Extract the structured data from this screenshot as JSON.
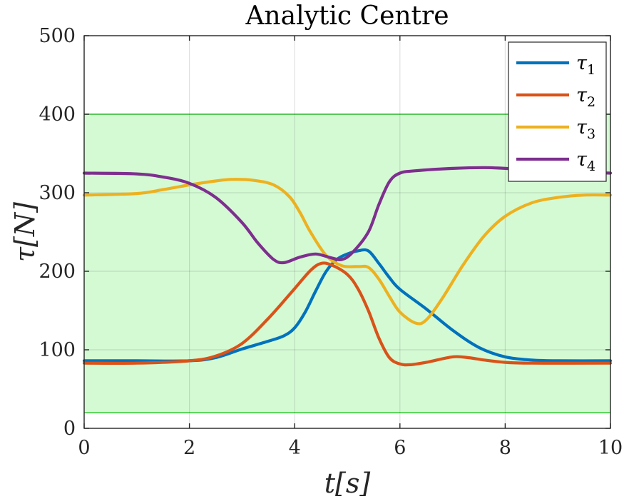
{
  "chart_data": {
    "type": "line",
    "title": "Analytic Centre",
    "xlabel": "t[s]",
    "ylabel": "τ[N]",
    "xlim": [
      0,
      10
    ],
    "ylim": [
      0,
      500
    ],
    "xticks": [
      "0",
      "2",
      "4",
      "6",
      "8",
      "10"
    ],
    "yticks": [
      "0",
      "100",
      "200",
      "300",
      "400",
      "500"
    ],
    "grid": true,
    "legend_position": "top-right",
    "feasible_band": {
      "lower": 20,
      "upper": 400,
      "fill": "#d4fad4",
      "edge": "#33cc33"
    },
    "series": [
      {
        "name": "τ1",
        "label_base": "τ",
        "label_sub": "1",
        "color": "#0072BD",
        "points": [
          [
            0,
            86
          ],
          [
            1,
            86
          ],
          [
            2,
            86
          ],
          [
            2.5,
            90
          ],
          [
            3,
            101
          ],
          [
            3.5,
            111
          ],
          [
            3.8,
            118
          ],
          [
            4,
            128
          ],
          [
            4.2,
            148
          ],
          [
            4.4,
            175
          ],
          [
            4.6,
            200
          ],
          [
            4.8,
            215
          ],
          [
            5,
            222
          ],
          [
            5.2,
            226
          ],
          [
            5.4,
            226
          ],
          [
            5.6,
            210
          ],
          [
            5.8,
            192
          ],
          [
            6,
            177
          ],
          [
            6.5,
            152
          ],
          [
            7,
            125
          ],
          [
            7.5,
            103
          ],
          [
            8,
            91
          ],
          [
            8.5,
            87
          ],
          [
            9,
            86
          ],
          [
            10,
            86
          ]
        ]
      },
      {
        "name": "τ2",
        "label_base": "τ",
        "label_sub": "2",
        "color": "#D95319",
        "points": [
          [
            0,
            83
          ],
          [
            1,
            83
          ],
          [
            2,
            86
          ],
          [
            2.5,
            92
          ],
          [
            3,
            108
          ],
          [
            3.5,
            140
          ],
          [
            4,
            178
          ],
          [
            4.3,
            201
          ],
          [
            4.5,
            210
          ],
          [
            4.7,
            208
          ],
          [
            5,
            196
          ],
          [
            5.2,
            178
          ],
          [
            5.4,
            150
          ],
          [
            5.6,
            115
          ],
          [
            5.8,
            90
          ],
          [
            6,
            82
          ],
          [
            6.2,
            81
          ],
          [
            6.5,
            84
          ],
          [
            7,
            91
          ],
          [
            7.3,
            90
          ],
          [
            7.6,
            87
          ],
          [
            8,
            84
          ],
          [
            8.5,
            83
          ],
          [
            10,
            83
          ]
        ]
      },
      {
        "name": "τ3",
        "label_base": "τ",
        "label_sub": "3",
        "color": "#EDB120",
        "points": [
          [
            0,
            297
          ],
          [
            1,
            299
          ],
          [
            1.5,
            304
          ],
          [
            2,
            310
          ],
          [
            2.5,
            315
          ],
          [
            2.8,
            317
          ],
          [
            3.2,
            316
          ],
          [
            3.6,
            310
          ],
          [
            3.9,
            295
          ],
          [
            4.1,
            275
          ],
          [
            4.3,
            250
          ],
          [
            4.6,
            220
          ],
          [
            4.9,
            207
          ],
          [
            5.2,
            206
          ],
          [
            5.4,
            205
          ],
          [
            5.6,
            190
          ],
          [
            5.8,
            168
          ],
          [
            6,
            148
          ],
          [
            6.3,
            134
          ],
          [
            6.5,
            138
          ],
          [
            6.8,
            165
          ],
          [
            7.2,
            208
          ],
          [
            7.6,
            245
          ],
          [
            8,
            270
          ],
          [
            8.5,
            287
          ],
          [
            9,
            294
          ],
          [
            9.5,
            297
          ],
          [
            10,
            297
          ]
        ]
      },
      {
        "name": "τ4",
        "label_base": "τ",
        "label_sub": "4",
        "color": "#7E2F8E",
        "points": [
          [
            0,
            325
          ],
          [
            1,
            324
          ],
          [
            1.5,
            320
          ],
          [
            2,
            312
          ],
          [
            2.5,
            294
          ],
          [
            3,
            262
          ],
          [
            3.3,
            236
          ],
          [
            3.6,
            215
          ],
          [
            3.8,
            211
          ],
          [
            4.1,
            218
          ],
          [
            4.4,
            222
          ],
          [
            4.7,
            217
          ],
          [
            4.9,
            215
          ],
          [
            5.1,
            224
          ],
          [
            5.4,
            250
          ],
          [
            5.6,
            285
          ],
          [
            5.8,
            314
          ],
          [
            6,
            325
          ],
          [
            6.3,
            328
          ],
          [
            7,
            331
          ],
          [
            7.6,
            332
          ],
          [
            8,
            331
          ],
          [
            8.8,
            328
          ],
          [
            9.5,
            326
          ],
          [
            10,
            325
          ]
        ]
      }
    ]
  }
}
